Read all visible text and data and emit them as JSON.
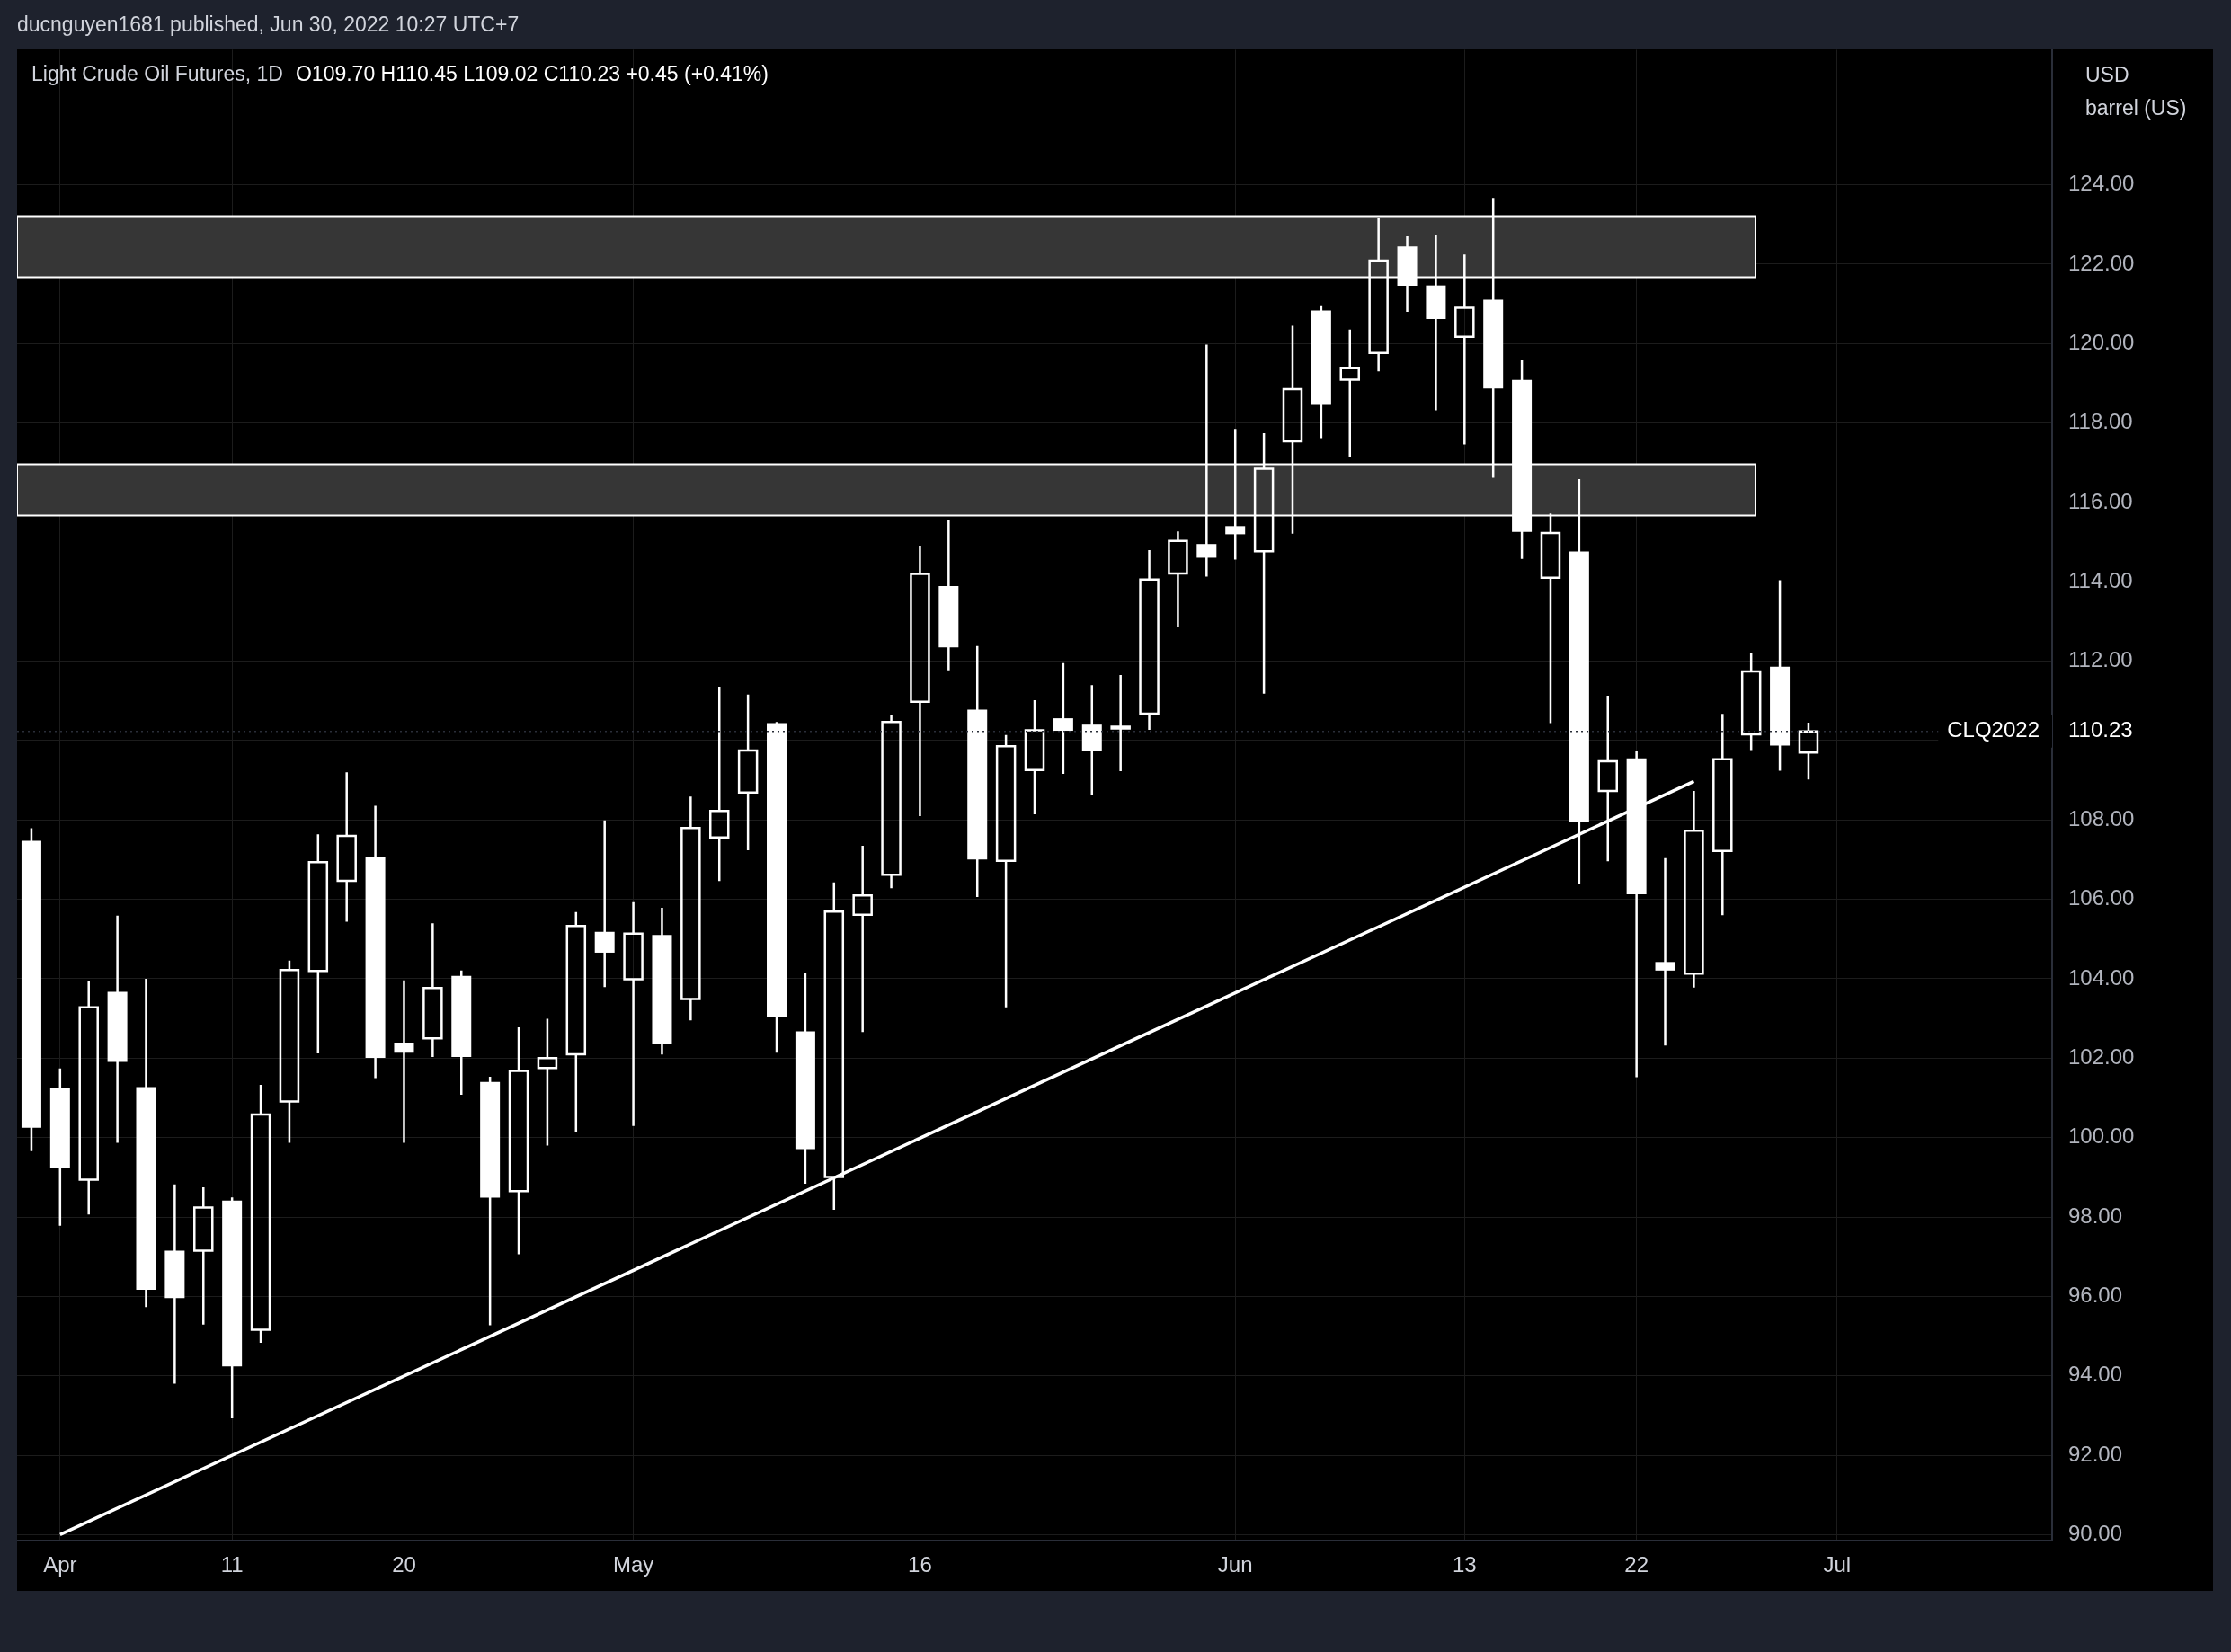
{
  "chart_data": {
    "type": "candlestick",
    "title": "Light Crude Oil Futures, 1D",
    "subtitle": "O109.70  H110.45  L109.02  C110.23  +0.45 (+0.41%)",
    "ylabel": "USD\nbarrel (US)",
    "annotations": [
      "ducnguyen1681 published, Jun 30, 2022 10:27 UTC+7",
      "110.23"
    ],
    "categories": [
      null,
      "Apr",
      null,
      null,
      null,
      null,
      null,
      "11",
      null,
      null,
      null,
      null,
      null,
      "20",
      null,
      null,
      null,
      null,
      null,
      null,
      null,
      "May",
      null,
      null,
      null,
      null,
      null,
      null,
      null,
      null,
      null,
      "16",
      null,
      null,
      null,
      null,
      null,
      null,
      null,
      null,
      null,
      null,
      "Jun",
      null,
      null,
      null,
      null,
      null,
      null,
      null,
      "13",
      null,
      null,
      null,
      null,
      null,
      "22",
      null,
      null,
      null,
      null,
      null,
      null,
      "Jul",
      null,
      null,
      null,
      null,
      null,
      null,
      null
    ],
    "color": "#ffffff",
    "ohlc": [
      [
        107.45,
        107.79,
        99.66,
        100.27
      ],
      [
        101.22,
        101.74,
        97.78,
        99.26
      ],
      [
        98.94,
        103.94,
        98.06,
        103.28
      ],
      [
        103.65,
        105.59,
        99.87,
        101.93
      ],
      [
        101.25,
        104.0,
        95.73,
        96.19
      ],
      [
        97.13,
        98.82,
        93.8,
        95.98
      ],
      [
        97.15,
        98.75,
        95.29,
        98.24
      ],
      [
        98.39,
        98.49,
        92.93,
        94.26
      ],
      [
        95.16,
        101.33,
        94.83,
        100.58
      ],
      [
        100.91,
        104.46,
        99.87,
        104.22
      ],
      [
        104.2,
        107.64,
        102.12,
        106.94
      ],
      [
        106.47,
        109.2,
        105.44,
        107.6
      ],
      [
        107.05,
        108.36,
        101.5,
        102.03
      ],
      [
        102.37,
        103.96,
        99.87,
        102.16
      ],
      [
        102.5,
        105.4,
        102.03,
        103.77
      ],
      [
        104.05,
        104.21,
        101.08,
        102.05
      ],
      [
        101.38,
        101.53,
        95.27,
        98.51
      ],
      [
        98.65,
        102.78,
        97.06,
        101.68
      ],
      [
        101.75,
        102.99,
        99.8,
        102.0
      ],
      [
        102.1,
        105.68,
        100.15,
        105.33
      ],
      [
        105.16,
        107.99,
        103.79,
        104.68
      ],
      [
        103.99,
        105.93,
        100.29,
        105.14
      ],
      [
        105.08,
        105.79,
        102.09,
        102.38
      ],
      [
        103.49,
        108.59,
        102.95,
        107.8
      ],
      [
        107.56,
        111.36,
        106.46,
        108.23
      ],
      [
        108.69,
        111.16,
        107.24,
        109.75
      ],
      [
        110.42,
        110.47,
        102.14,
        103.06
      ],
      [
        102.65,
        104.14,
        98.84,
        99.73
      ],
      [
        99.01,
        106.43,
        98.18,
        105.69
      ],
      [
        105.61,
        107.35,
        102.66,
        106.1
      ],
      [
        106.62,
        110.65,
        106.28,
        110.47
      ],
      [
        110.98,
        114.9,
        108.1,
        114.2
      ],
      [
        113.87,
        115.56,
        111.77,
        112.37
      ],
      [
        110.76,
        112.38,
        106.06,
        107.03
      ],
      [
        106.97,
        110.14,
        103.28,
        109.86
      ],
      [
        109.26,
        111.02,
        108.14,
        110.26
      ],
      [
        110.54,
        111.95,
        109.16,
        110.27
      ],
      [
        110.38,
        111.4,
        108.62,
        109.76
      ],
      [
        110.33,
        111.65,
        109.23,
        110.35
      ],
      [
        110.68,
        114.8,
        110.27,
        114.06
      ],
      [
        114.21,
        115.27,
        112.85,
        115.03
      ],
      [
        114.93,
        119.97,
        114.13,
        114.63
      ],
      [
        115.38,
        117.85,
        114.56,
        115.22
      ],
      [
        114.77,
        117.74,
        111.18,
        116.85
      ],
      [
        117.54,
        120.45,
        115.21,
        118.85
      ],
      [
        120.81,
        120.96,
        117.62,
        118.48
      ],
      [
        119.09,
        120.35,
        117.13,
        119.39
      ],
      [
        119.76,
        123.16,
        119.3,
        122.09
      ],
      [
        122.42,
        122.7,
        120.8,
        121.48
      ],
      [
        121.44,
        122.73,
        118.32,
        120.64
      ],
      [
        120.17,
        122.24,
        117.46,
        120.9
      ],
      [
        121.08,
        123.67,
        116.62,
        118.89
      ],
      [
        119.06,
        119.59,
        114.58,
        115.28
      ],
      [
        114.1,
        115.72,
        110.44,
        115.23
      ],
      [
        114.74,
        116.59,
        106.4,
        107.98
      ],
      [
        108.73,
        111.13,
        106.96,
        109.48
      ],
      [
        109.53,
        109.74,
        101.52,
        106.15
      ],
      [
        104.4,
        107.04,
        102.32,
        104.23
      ],
      [
        104.13,
        108.73,
        103.78,
        107.73
      ],
      [
        107.22,
        110.67,
        105.6,
        109.53
      ],
      [
        110.16,
        112.2,
        109.76,
        111.74
      ],
      [
        111.84,
        114.04,
        109.24,
        109.9
      ],
      [
        109.7,
        110.45,
        109.02,
        110.23
      ],
      null,
      null,
      null,
      null,
      null,
      null,
      null,
      null
    ],
    "series": [
      {
        "type": "line",
        "color": "#ffffff",
        "values": [
          null,
          90.0,
          null,
          null,
          null,
          null,
          null,
          null,
          null,
          null,
          null,
          null,
          null,
          null,
          null,
          null,
          null,
          null,
          null,
          null,
          null,
          null,
          null,
          null,
          null,
          null,
          null,
          null,
          null,
          null,
          null,
          null,
          null,
          null,
          null,
          null,
          null,
          null,
          null,
          null,
          null,
          null,
          null,
          null,
          null,
          null,
          null,
          null,
          null,
          null,
          null,
          null,
          null,
          null,
          null,
          null,
          null,
          null,
          108.97,
          null,
          null,
          null,
          null,
          null,
          null,
          null,
          null,
          null,
          null,
          null,
          null
        ]
      }
    ],
    "bands": [
      {
        "axis": "y",
        "from": 121.67,
        "to": 123.21,
        "color": "#363636"
      },
      {
        "axis": "y",
        "from": 115.67,
        "to": 116.96,
        "color": "#363636"
      }
    ],
    "ref_lines": [
      {
        "axis": "y",
        "value": 110.23,
        "label": "CLQ2022",
        "color": "#2a2e39",
        "line_style": "dotted"
      }
    ],
    "ylim": [
      89.85,
      127.4
    ],
    "yticks": [
      {
        "value": 90,
        "label": "90.00"
      },
      {
        "value": 92,
        "label": "92.00"
      },
      {
        "value": 94,
        "label": "94.00"
      },
      {
        "value": 96,
        "label": "96.00"
      },
      {
        "value": 98,
        "label": "98.00"
      },
      {
        "value": 100,
        "label": "100.00"
      },
      {
        "value": 102,
        "label": "102.00"
      },
      {
        "value": 104,
        "label": "104.00"
      },
      {
        "value": 106,
        "label": "106.00"
      },
      {
        "value": 108,
        "label": "108.00"
      },
      {
        "value": 110,
        "label": null
      },
      {
        "value": 112,
        "label": "112.00"
      },
      {
        "value": 114,
        "label": "114.00"
      },
      {
        "value": 116,
        "label": "116.00"
      },
      {
        "value": 118,
        "label": "118.00"
      },
      {
        "value": 120,
        "label": "120.00"
      },
      {
        "value": 122,
        "label": "122.00"
      },
      {
        "value": 124,
        "label": "124.00"
      }
    ],
    "grid": true
  }
}
